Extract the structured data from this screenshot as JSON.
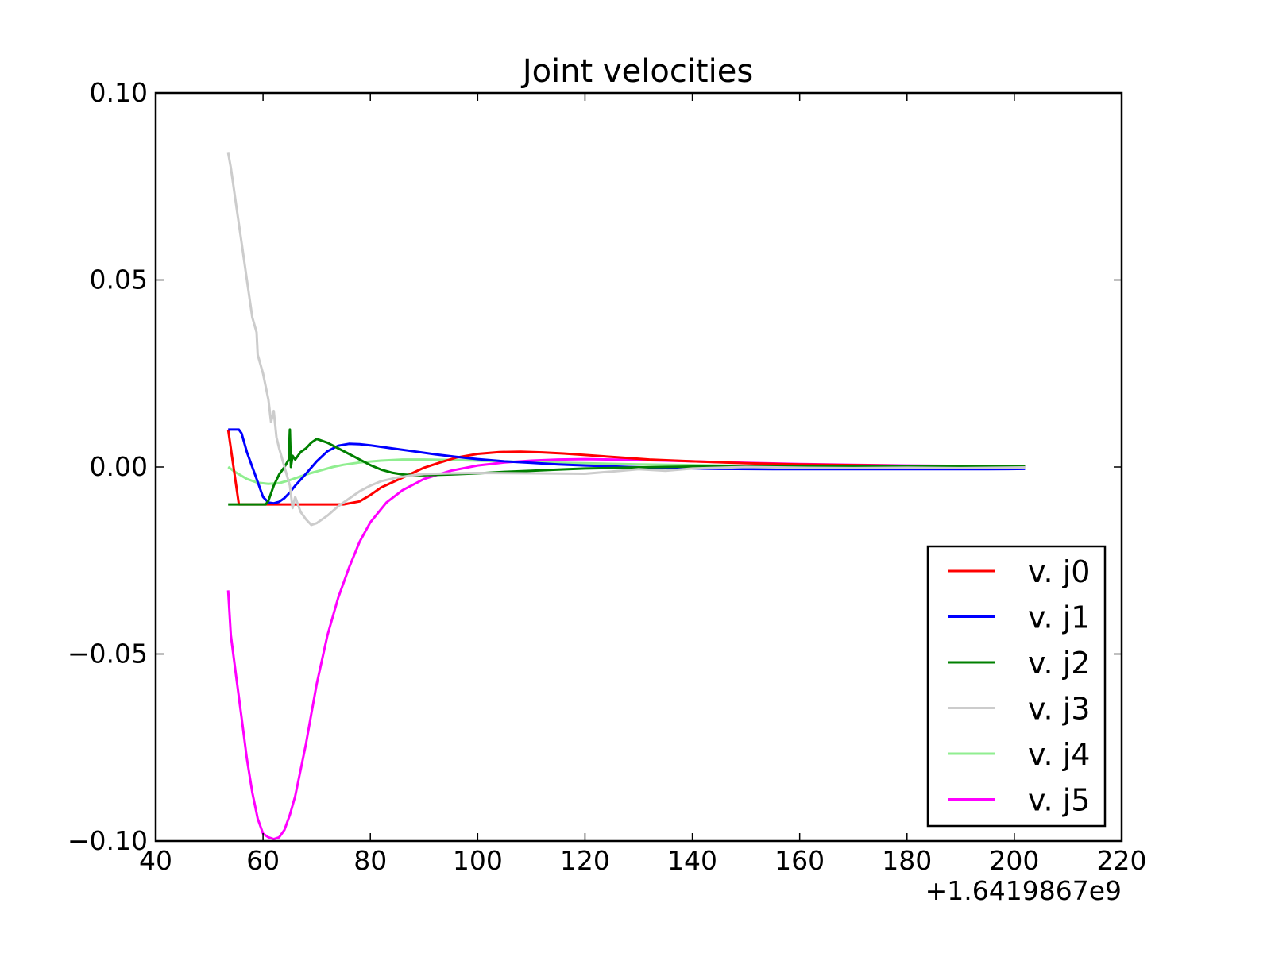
{
  "chart_data": {
    "type": "line",
    "title": "Joint velocities",
    "xlabel": "",
    "ylabel": "",
    "x_offset_label": "+1.6419867e9",
    "xlim": [
      40,
      220
    ],
    "ylim": [
      -0.1,
      0.1
    ],
    "x_ticks": [
      40,
      60,
      80,
      100,
      120,
      140,
      160,
      180,
      200,
      220
    ],
    "x_tick_labels": [
      "40",
      "60",
      "80",
      "100",
      "120",
      "140",
      "160",
      "180",
      "200",
      "220"
    ],
    "y_ticks": [
      -0.1,
      -0.05,
      0.0,
      0.05,
      0.1
    ],
    "y_tick_labels": [
      "−0.10",
      "−0.05",
      "0.00",
      "0.05",
      "0.10"
    ],
    "grid": false,
    "legend_position": "lower-right",
    "series": [
      {
        "name": "v. j0",
        "color": "#ff0000",
        "x": [
          53.5,
          55.5,
          56,
          70,
          75,
          78,
          80,
          82,
          85,
          88,
          90,
          93,
          96,
          100,
          104,
          108,
          112,
          116,
          120,
          126,
          132,
          140,
          150,
          160,
          170,
          180,
          190,
          202
        ],
        "y": [
          0.01,
          -0.01,
          -0.01,
          -0.01,
          -0.01,
          -0.0092,
          -0.0075,
          -0.0055,
          -0.0035,
          -0.0015,
          -0.0002,
          0.0012,
          0.0025,
          0.0035,
          0.004,
          0.0041,
          0.0039,
          0.0036,
          0.0032,
          0.0026,
          0.002,
          0.0015,
          0.001,
          0.0007,
          0.0005,
          0.0003,
          0.0002,
          0.0001
        ]
      },
      {
        "name": "v. j1",
        "color": "#0000ff",
        "x": [
          53.5,
          55.5,
          56,
          57,
          58,
          59,
          60,
          61,
          62,
          63,
          64,
          65,
          66,
          68,
          70,
          72,
          74,
          76,
          78,
          80,
          84,
          88,
          92,
          96,
          100,
          105,
          110,
          115,
          120,
          128,
          136,
          145,
          155,
          165,
          175,
          185,
          195,
          202
        ],
        "y": [
          0.01,
          0.01,
          0.009,
          0.004,
          0.0,
          -0.004,
          -0.008,
          -0.0095,
          -0.0097,
          -0.0093,
          -0.0083,
          -0.0068,
          -0.005,
          -0.0018,
          0.0015,
          0.0042,
          0.0057,
          0.0062,
          0.0061,
          0.0058,
          0.005,
          0.0042,
          0.0034,
          0.0027,
          0.0021,
          0.0015,
          0.0011,
          0.0007,
          0.0004,
          0.0,
          -0.0003,
          -0.0005,
          -0.0006,
          -0.0006,
          -0.0006,
          -0.0006,
          -0.0006,
          -0.0005
        ]
      },
      {
        "name": "v. j2",
        "color": "#008000",
        "x": [
          53.5,
          56,
          60.5,
          61,
          62,
          63,
          64,
          64.8,
          65,
          65.2,
          65.5,
          66,
          67,
          68,
          69,
          70,
          72,
          74,
          76,
          78,
          80,
          82,
          84,
          86,
          88,
          90,
          95,
          100,
          105,
          110,
          115,
          120,
          130,
          140,
          150,
          160,
          170,
          180,
          190,
          202
        ],
        "y": [
          -0.01,
          -0.01,
          -0.01,
          -0.009,
          -0.005,
          -0.002,
          0.0,
          0.002,
          0.01,
          0.0,
          0.003,
          0.002,
          0.004,
          0.005,
          0.0065,
          0.0075,
          0.0065,
          0.005,
          0.0035,
          0.002,
          0.0005,
          -0.0007,
          -0.0015,
          -0.002,
          -0.0022,
          -0.0022,
          -0.002,
          -0.0017,
          -0.0013,
          -0.001,
          -0.0007,
          -0.0004,
          -0.0001,
          0.0001,
          0.0002,
          0.0002,
          0.0002,
          0.0002,
          0.0003,
          0.0001
        ]
      },
      {
        "name": "v. j3",
        "color": "#cccccc",
        "x": [
          53.5,
          54,
          55,
          56,
          57,
          58,
          58.8,
          59,
          60,
          61,
          61.5,
          62,
          62.5,
          63,
          64,
          65,
          65.5,
          66,
          67,
          68,
          69,
          70,
          72,
          74,
          76,
          78,
          80,
          82,
          85,
          88,
          90,
          95,
          100,
          110,
          120,
          125,
          130,
          135,
          140,
          150,
          160,
          170,
          180,
          190,
          202
        ],
        "y": [
          0.084,
          0.08,
          0.07,
          0.06,
          0.05,
          0.04,
          0.036,
          0.03,
          0.025,
          0.018,
          0.012,
          0.015,
          0.008,
          0.005,
          0.0,
          -0.005,
          -0.011,
          -0.008,
          -0.012,
          -0.014,
          -0.0155,
          -0.015,
          -0.013,
          -0.0105,
          -0.0085,
          -0.0065,
          -0.005,
          -0.0038,
          -0.0028,
          -0.0022,
          -0.0019,
          -0.0017,
          -0.0016,
          -0.0017,
          -0.0018,
          -0.0012,
          -0.0006,
          -0.001,
          -0.0004,
          0.0,
          -0.0002,
          -0.0003,
          -0.0002,
          -0.0003,
          -0.0001
        ]
      },
      {
        "name": "v. j4",
        "color": "#90ee90",
        "x": [
          53.5,
          55,
          57,
          59,
          61,
          63,
          65,
          67,
          69,
          71,
          73,
          75,
          78,
          82,
          86,
          90,
          95,
          100,
          110,
          120,
          130,
          140,
          150,
          160,
          170,
          180,
          190,
          202
        ],
        "y": [
          0.0,
          -0.0015,
          -0.0032,
          -0.0042,
          -0.0045,
          -0.0043,
          -0.0035,
          -0.0025,
          -0.0016,
          -0.0008,
          0.0,
          0.0006,
          0.0012,
          0.0017,
          0.002,
          0.002,
          0.0019,
          0.0017,
          0.0013,
          0.001,
          0.0007,
          0.0005,
          0.0003,
          0.0002,
          0.0001,
          0.0001,
          0.0,
          0.0
        ]
      },
      {
        "name": "v. j5",
        "color": "#ff00ff",
        "x": [
          53.5,
          54,
          55,
          56,
          57,
          58,
          59,
          60,
          61,
          62,
          63,
          64,
          65,
          66,
          67,
          68,
          69,
          70,
          72,
          74,
          76,
          78,
          80,
          83,
          86,
          90,
          95,
          100,
          105,
          110,
          115,
          120,
          125,
          130,
          140,
          150,
          160,
          170,
          180,
          190,
          202
        ],
        "y": [
          -0.033,
          -0.045,
          -0.056,
          -0.067,
          -0.078,
          -0.087,
          -0.094,
          -0.098,
          -0.099,
          -0.0995,
          -0.099,
          -0.097,
          -0.093,
          -0.088,
          -0.081,
          -0.074,
          -0.066,
          -0.058,
          -0.045,
          -0.035,
          -0.027,
          -0.02,
          -0.0148,
          -0.0095,
          -0.0062,
          -0.0032,
          -0.001,
          0.0004,
          0.0012,
          0.0017,
          0.002,
          0.0021,
          0.002,
          0.0019,
          0.0015,
          0.0011,
          0.0008,
          0.0006,
          0.0004,
          0.0003,
          0.0002
        ]
      }
    ]
  }
}
